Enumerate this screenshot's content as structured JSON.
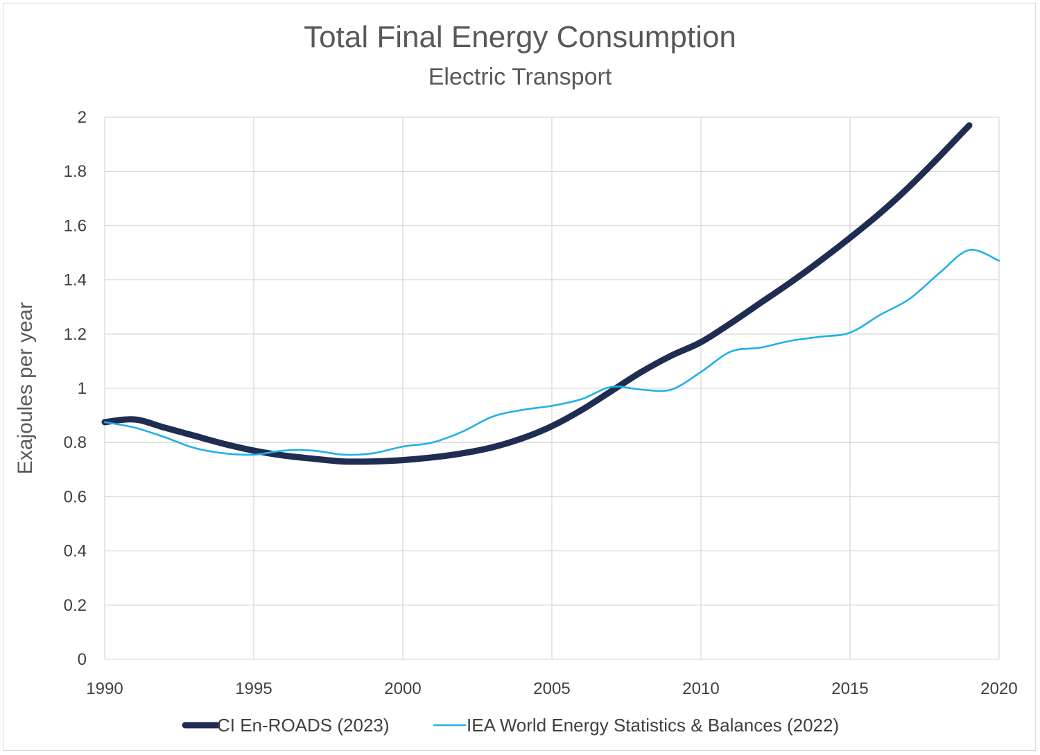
{
  "chart_data": {
    "type": "line",
    "title": "Total Final Energy Consumption",
    "subtitle": "Electric Transport",
    "xlabel": "",
    "ylabel": "Exajoules per year",
    "xlim": [
      1990,
      2020
    ],
    "ylim": [
      0,
      2
    ],
    "x_ticks": [
      "1990",
      "1995",
      "2000",
      "2005",
      "2010",
      "2015",
      "2020"
    ],
    "y_ticks": [
      "0",
      "0.2",
      "0.4",
      "0.6",
      "0.8",
      "1",
      "1.2",
      "1.4",
      "1.6",
      "1.8",
      "2"
    ],
    "grid": true,
    "legend_position": "bottom",
    "series": [
      {
        "name": "CI En-ROADS (2023)",
        "color": "#1f2d52",
        "x": [
          1990,
          1991,
          1992,
          1993,
          1994,
          1995,
          1996,
          1997,
          1998,
          1999,
          2000,
          2001,
          2002,
          2003,
          2004,
          2005,
          2006,
          2007,
          2008,
          2009,
          2010,
          2011,
          2012,
          2013,
          2014,
          2015,
          2016,
          2017,
          2018,
          2019
        ],
        "y": [
          0.875,
          0.885,
          0.855,
          0.825,
          0.795,
          0.77,
          0.752,
          0.74,
          0.73,
          0.73,
          0.735,
          0.745,
          0.76,
          0.782,
          0.815,
          0.86,
          0.92,
          0.99,
          1.06,
          1.12,
          1.17,
          1.24,
          1.315,
          1.39,
          1.47,
          1.555,
          1.645,
          1.745,
          1.855,
          1.97
        ]
      },
      {
        "name": "IEA World Energy Statistics & Balances (2022)",
        "color": "#1fb0e8",
        "x": [
          1990,
          1991,
          1992,
          1993,
          1994,
          1995,
          1996,
          1997,
          1998,
          1999,
          2000,
          2001,
          2002,
          2003,
          2004,
          2005,
          2006,
          2007,
          2008,
          2009,
          2010,
          2011,
          2012,
          2013,
          2014,
          2015,
          2016,
          2017,
          2018,
          2019,
          2020
        ],
        "y": [
          0.875,
          0.855,
          0.82,
          0.78,
          0.76,
          0.755,
          0.77,
          0.77,
          0.755,
          0.76,
          0.785,
          0.8,
          0.84,
          0.895,
          0.92,
          0.935,
          0.96,
          1.005,
          0.995,
          0.995,
          1.06,
          1.135,
          1.15,
          1.175,
          1.19,
          1.205,
          1.27,
          1.33,
          1.425,
          1.51,
          1.47
        ]
      }
    ]
  }
}
